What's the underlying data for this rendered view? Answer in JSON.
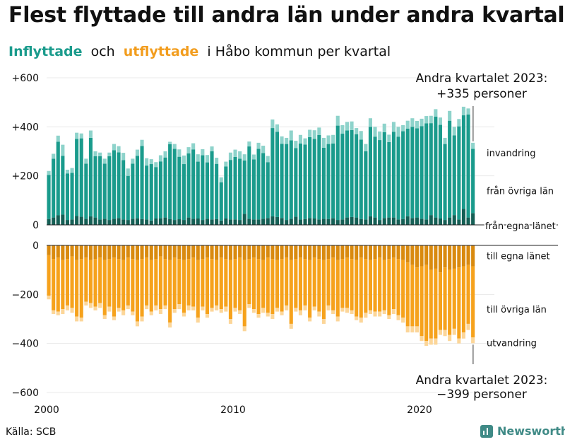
{
  "title": "Flest flyttade till andra län under andra kvartalet",
  "subtitle": {
    "part1": "Inflyttade",
    "part2": "och",
    "part3": "utflyttade",
    "part4": "i Håbo kommun per kvartal"
  },
  "source": "Källa: SCB",
  "brand": "Newsworthy",
  "colors": {
    "in_egna": "#155f55",
    "in_ovriga": "#1a9b8c",
    "in_invandring": "#8ed3cb",
    "out_egna": "#d98a0f",
    "out_ovriga": "#f6a21c",
    "out_utvandring": "#fcd699"
  },
  "chart_data": {
    "type": "bar",
    "stacked": true,
    "x_start": 2000.0,
    "x_step": 0.25,
    "xticks": [
      "2000",
      "2010",
      "2020"
    ],
    "top": {
      "yticks": [
        "+600",
        "+400",
        "+200",
        "0"
      ],
      "ylim": [
        0,
        600
      ],
      "legend": [
        "invandring",
        "från övriga län",
        "från egna länet"
      ],
      "annotation": [
        "Andra kvartalet 2023:",
        "+335 personer"
      ],
      "series": [
        {
          "name": "från egna länet",
          "values": [
            24,
            30,
            39,
            42,
            20,
            22,
            36,
            33,
            25,
            35,
            30,
            22,
            25,
            20,
            25,
            28,
            22,
            20,
            25,
            27,
            24,
            22,
            18,
            26,
            27,
            30,
            24,
            20,
            23,
            20,
            30,
            25,
            26,
            20,
            25,
            22,
            24,
            18,
            26,
            22,
            22,
            20,
            45,
            25,
            22,
            22,
            25,
            28,
            35,
            32,
            28,
            20,
            25,
            33,
            22,
            24,
            28,
            26,
            22,
            25,
            24,
            27,
            20,
            22,
            30,
            32,
            30,
            24,
            22,
            35,
            30,
            20,
            28,
            30,
            30,
            22,
            24,
            35,
            28,
            30,
            25,
            22,
            40,
            30,
            26,
            20,
            30,
            40,
            22,
            65,
            30,
            48
          ]
        },
        {
          "name": "från övriga län",
          "values": [
            180,
            240,
            300,
            240,
            190,
            190,
            315,
            320,
            225,
            320,
            250,
            258,
            225,
            260,
            280,
            268,
            242,
            180,
            225,
            255,
            298,
            220,
            230,
            210,
            232,
            245,
            305,
            290,
            255,
            228,
            262,
            283,
            232,
            264,
            230,
            278,
            225,
            156,
            212,
            243,
            255,
            250,
            218,
            295,
            245,
            288,
            268,
            228,
            360,
            348,
            303,
            310,
            320,
            280,
            310,
            304,
            330,
            325,
            345,
            290,
            306,
            305,
            385,
            350,
            355,
            355,
            340,
            324,
            278,
            365,
            330,
            326,
            350,
            308,
            350,
            338,
            358,
            358,
            372,
            364,
            378,
            392,
            375,
            412,
            382,
            310,
            395,
            325,
            380,
            382,
            420,
            262
          ]
        },
        {
          "name": "invandring",
          "values": [
            16,
            20,
            25,
            45,
            15,
            20,
            25,
            20,
            20,
            30,
            20,
            15,
            20,
            15,
            25,
            25,
            30,
            30,
            20,
            25,
            25,
            30,
            20,
            20,
            25,
            25,
            10,
            20,
            30,
            35,
            25,
            25,
            30,
            25,
            30,
            20,
            25,
            20,
            20,
            30,
            30,
            30,
            25,
            20,
            20,
            25,
            30,
            25,
            35,
            30,
            30,
            25,
            40,
            30,
            35,
            25,
            30,
            35,
            30,
            40,
            35,
            35,
            40,
            35,
            35,
            35,
            25,
            35,
            30,
            35,
            40,
            35,
            35,
            30,
            40,
            40,
            25,
            32,
            35,
            30,
            30,
            30,
            30,
            30,
            30,
            25,
            40,
            35,
            30,
            35,
            25,
            25
          ]
        }
      ]
    },
    "bottom": {
      "yticks": [
        "0",
        "−200",
        "−400",
        "−600"
      ],
      "ylim": [
        -600,
        0
      ],
      "legend": [
        "till egna länet",
        "till övriga län",
        "utvandring"
      ],
      "annotation": [
        "Andra kvartalet 2023:",
        "−399 personer"
      ],
      "series": [
        {
          "name": "till egna länet",
          "values": [
            -40,
            -55,
            -50,
            -60,
            -55,
            -45,
            -60,
            -55,
            -50,
            -60,
            -55,
            -50,
            -60,
            -55,
            -50,
            -55,
            -60,
            -50,
            -55,
            -60,
            -55,
            -50,
            -60,
            -55,
            -45,
            -55,
            -60,
            -50,
            -55,
            -60,
            -55,
            -50,
            -60,
            -55,
            -50,
            -55,
            -60,
            -50,
            -55,
            -60,
            -55,
            -50,
            -60,
            -55,
            -50,
            -55,
            -60,
            -50,
            -55,
            -60,
            -55,
            -50,
            -60,
            -55,
            -50,
            -55,
            -60,
            -50,
            -55,
            -60,
            -55,
            -50,
            -60,
            -55,
            -50,
            -55,
            -60,
            -50,
            -55,
            -60,
            -55,
            -50,
            -60,
            -55,
            -50,
            -55,
            -60,
            -70,
            -80,
            -90,
            -85,
            -80,
            -100,
            -95,
            -110,
            -90,
            -100,
            -95,
            -90,
            -85,
            -80,
            -85
          ]
        },
        {
          "name": "till övriga län",
          "values": [
            -165,
            -210,
            -220,
            -200,
            -190,
            -210,
            -230,
            -240,
            -180,
            -175,
            -195,
            -185,
            -225,
            -195,
            -240,
            -200,
            -205,
            -195,
            -215,
            -250,
            -235,
            -195,
            -210,
            -190,
            -215,
            -190,
            -255,
            -210,
            -185,
            -215,
            -190,
            -200,
            -235,
            -195,
            -230,
            -200,
            -185,
            -210,
            -195,
            -240,
            -200,
            -215,
            -270,
            -185,
            -210,
            -225,
            -195,
            -225,
            -225,
            -195,
            -215,
            -195,
            -260,
            -200,
            -215,
            -190,
            -235,
            -200,
            -215,
            -240,
            -190,
            -215,
            -230,
            -200,
            -205,
            -210,
            -230,
            -245,
            -220,
            -205,
            -215,
            -220,
            -205,
            -230,
            -210,
            -230,
            -235,
            -260,
            -250,
            -240,
            -285,
            -310,
            -280,
            -285,
            -235,
            -255,
            -265,
            -245,
            -290,
            -270,
            -240,
            -290
          ]
        },
        {
          "name": "utvandring",
          "values": [
            -15,
            -15,
            -15,
            -20,
            -20,
            -20,
            -20,
            -15,
            -15,
            -20,
            -15,
            -20,
            -15,
            -20,
            -15,
            -15,
            -20,
            -15,
            -15,
            -20,
            -20,
            -15,
            -15,
            -20,
            -20,
            -15,
            -20,
            -15,
            -20,
            -15,
            -20,
            -15,
            -20,
            -15,
            -15,
            -15,
            -20,
            -15,
            -20,
            -20,
            -15,
            -15,
            -20,
            -15,
            -15,
            -15,
            -20,
            -15,
            -20,
            -15,
            -15,
            -20,
            -20,
            -15,
            -20,
            -20,
            -15,
            -15,
            -20,
            -20,
            -20,
            -15,
            -20,
            -15,
            -20,
            -15,
            -15,
            -20,
            -20,
            -15,
            -20,
            -20,
            -15,
            -15,
            -20,
            -20,
            -20,
            -25,
            -25,
            -25,
            -20,
            -20,
            -25,
            -25,
            -20,
            -25,
            -25,
            -25,
            -20,
            -25,
            -25,
            -24
          ]
        }
      ]
    }
  }
}
